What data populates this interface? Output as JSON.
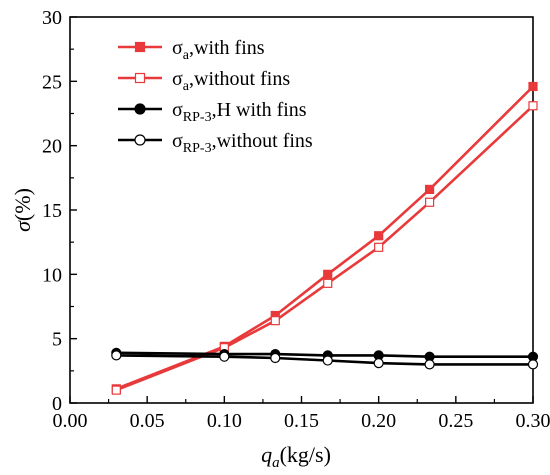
{
  "chart_data": {
    "type": "line",
    "xlabel": {
      "symbol": "q",
      "subscript": "a",
      "unit": "(kg/s)"
    },
    "ylabel": {
      "symbol": "σ",
      "unit": "(%)"
    },
    "xlim": [
      0.0,
      0.3
    ],
    "ylim": [
      0,
      30
    ],
    "xticks": [
      "0.00",
      "0.05",
      "0.10",
      "0.15",
      "0.20",
      "0.25",
      "0.30"
    ],
    "yticks": [
      "0",
      "5",
      "10",
      "15",
      "20",
      "25",
      "30"
    ],
    "grid": false,
    "legend_position": "top-left",
    "series": [
      {
        "name": "σa,with fins",
        "label_main": "σ",
        "label_sub": "a",
        "label_rest": ",with fins",
        "color": "#e8393b",
        "marker": "square",
        "filled": true,
        "x": [
          0.03,
          0.1,
          0.133,
          0.167,
          0.2,
          0.233,
          0.3
        ],
        "y": [
          1.1,
          4.4,
          6.8,
          10.0,
          13.0,
          16.6,
          24.6
        ]
      },
      {
        "name": "σa,without fins",
        "label_main": "σ",
        "label_sub": "a",
        "label_rest": ",without fins",
        "color": "#e8393b",
        "marker": "square",
        "filled": false,
        "x": [
          0.03,
          0.1,
          0.133,
          0.167,
          0.2,
          0.233,
          0.3
        ],
        "y": [
          1.0,
          4.3,
          6.4,
          9.3,
          12.1,
          15.6,
          23.1
        ]
      },
      {
        "name": "σRP-3,H with fins",
        "label_main": "σ",
        "label_sub": "RP-3",
        "label_rest": ",H with fins",
        "color": "#000000",
        "marker": "circle",
        "filled": true,
        "x": [
          0.03,
          0.1,
          0.133,
          0.167,
          0.2,
          0.233,
          0.3
        ],
        "y": [
          3.9,
          3.8,
          3.8,
          3.7,
          3.7,
          3.6,
          3.6
        ]
      },
      {
        "name": "σRP-3,without fins",
        "label_main": "σ",
        "label_sub": "RP-3",
        "label_rest": ",without fins",
        "color": "#000000",
        "marker": "circle",
        "filled": false,
        "x": [
          0.03,
          0.1,
          0.133,
          0.167,
          0.2,
          0.233,
          0.3
        ],
        "y": [
          3.7,
          3.6,
          3.5,
          3.3,
          3.1,
          3.0,
          3.0
        ]
      }
    ]
  }
}
